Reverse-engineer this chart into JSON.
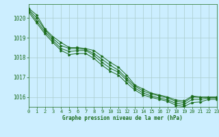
{
  "bg_color": "#cceeff",
  "grid_color": "#aacccc",
  "line_color": "#1a6b1a",
  "marker_color": "#1a6b1a",
  "xlabel": "Graphe pression niveau de la mer (hPa)",
  "xlabel_color": "#1a6b1a",
  "ylim": [
    1015.5,
    1020.7
  ],
  "xlim": [
    0,
    23
  ],
  "yticks": [
    1016,
    1017,
    1018,
    1019,
    1020
  ],
  "xticks": [
    0,
    1,
    2,
    3,
    4,
    5,
    6,
    7,
    8,
    9,
    10,
    11,
    12,
    13,
    14,
    15,
    16,
    17,
    18,
    19,
    20,
    21,
    22,
    23
  ],
  "series": [
    [
      1020.5,
      1020.15,
      1019.45,
      1019.05,
      1018.75,
      1018.5,
      1018.5,
      1018.45,
      1018.35,
      1018.05,
      1017.75,
      1017.5,
      1017.1,
      1016.6,
      1016.4,
      1016.2,
      1016.1,
      1016.0,
      1015.85,
      1015.8,
      1016.05,
      1016.0,
      1016.0,
      1016.0
    ],
    [
      1020.45,
      1020.0,
      1019.4,
      1018.95,
      1018.6,
      1018.45,
      1018.45,
      1018.4,
      1018.2,
      1017.9,
      1017.6,
      1017.35,
      1016.95,
      1016.55,
      1016.3,
      1016.15,
      1016.05,
      1015.95,
      1015.78,
      1015.72,
      1016.0,
      1015.98,
      1015.98,
      1015.98
    ],
    [
      1020.4,
      1019.85,
      1019.3,
      1018.85,
      1018.45,
      1018.3,
      1018.35,
      1018.35,
      1018.1,
      1017.75,
      1017.45,
      1017.25,
      1016.85,
      1016.45,
      1016.2,
      1016.05,
      1015.95,
      1015.85,
      1015.68,
      1015.62,
      1015.88,
      1015.88,
      1015.95,
      1015.95
    ],
    [
      1020.3,
      1019.75,
      1019.2,
      1018.75,
      1018.35,
      1018.15,
      1018.2,
      1018.2,
      1017.95,
      1017.6,
      1017.3,
      1017.1,
      1016.7,
      1016.35,
      1016.1,
      1015.98,
      1015.88,
      1015.78,
      1015.58,
      1015.52,
      1015.72,
      1015.75,
      1015.88,
      1015.88
    ]
  ]
}
